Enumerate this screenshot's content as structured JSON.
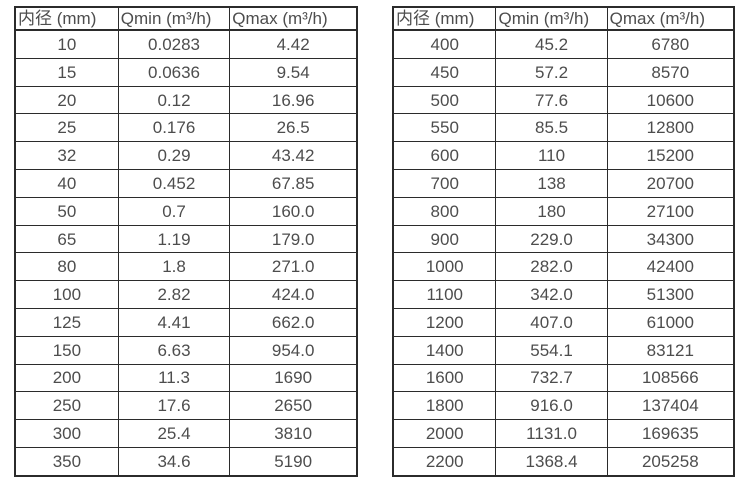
{
  "theme": {
    "border_color": "#2b2b2b",
    "text_color": "#4d4d4d",
    "background_color": "#ffffff"
  },
  "tables": [
    {
      "name": "flow-table-small-diameters",
      "headers": [
        "内径 (mm)",
        "Qmin (m³/h)",
        "Qmax (m³/h)"
      ],
      "rows": [
        [
          "10",
          "0.0283",
          "4.42"
        ],
        [
          "15",
          "0.0636",
          "9.54"
        ],
        [
          "20",
          "0.12",
          "16.96"
        ],
        [
          "25",
          "0.176",
          "26.5"
        ],
        [
          "32",
          "0.29",
          "43.42"
        ],
        [
          "40",
          "0.452",
          "67.85"
        ],
        [
          "50",
          "0.7",
          "160.0"
        ],
        [
          "65",
          "1.19",
          "179.0"
        ],
        [
          "80",
          "1.8",
          "271.0"
        ],
        [
          "100",
          "2.82",
          "424.0"
        ],
        [
          "125",
          "4.41",
          "662.0"
        ],
        [
          "150",
          "6.63",
          "954.0"
        ],
        [
          "200",
          "11.3",
          "1690"
        ],
        [
          "250",
          "17.6",
          "2650"
        ],
        [
          "300",
          "25.4",
          "3810"
        ],
        [
          "350",
          "34.6",
          "5190"
        ]
      ]
    },
    {
      "name": "flow-table-large-diameters",
      "headers": [
        "内径 (mm)",
        "Qmin (m³/h)",
        "Qmax (m³/h)"
      ],
      "rows": [
        [
          "400",
          "45.2",
          "6780"
        ],
        [
          "450",
          "57.2",
          "8570"
        ],
        [
          "500",
          "77.6",
          "10600"
        ],
        [
          "550",
          "85.5",
          "12800"
        ],
        [
          "600",
          "110",
          "15200"
        ],
        [
          "700",
          "138",
          "20700"
        ],
        [
          "800",
          "180",
          "27100"
        ],
        [
          "900",
          "229.0",
          "34300"
        ],
        [
          "1000",
          "282.0",
          "42400"
        ],
        [
          "1100",
          "342.0",
          "51300"
        ],
        [
          "1200",
          "407.0",
          "61000"
        ],
        [
          "1400",
          "554.1",
          "83121"
        ],
        [
          "1600",
          "732.7",
          "108566"
        ],
        [
          "1800",
          "916.0",
          "137404"
        ],
        [
          "2000",
          "1131.0",
          "169635"
        ],
        [
          "2200",
          "1368.4",
          "205258"
        ]
      ]
    }
  ]
}
